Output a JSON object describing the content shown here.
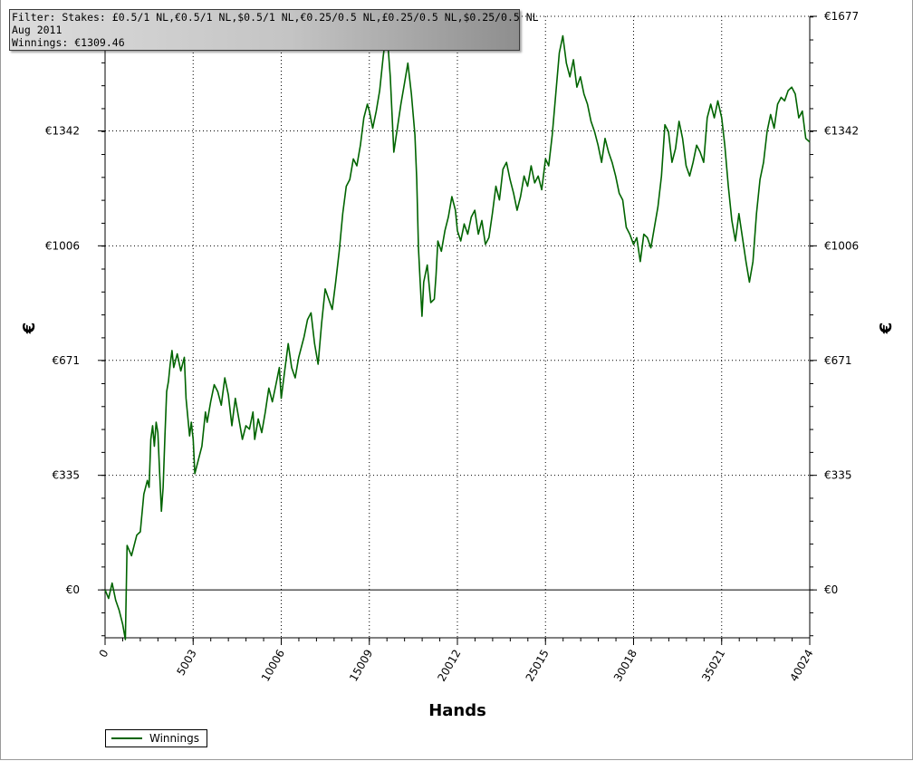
{
  "info": {
    "filter_line": "Filter: Stakes: £0.5/1 NL,€0.5/1 NL,$0.5/1 NL,€0.25/0.5 NL,£0.25/0.5 NL,$0.25/0.5 NL",
    "date_line": "Aug 2011",
    "winnings_line": "Winnings: €1309.46"
  },
  "legend": {
    "label": "Winnings"
  },
  "chart_data": {
    "type": "line",
    "xlabel": "Hands",
    "ylabel": "€",
    "ylabel_right": "€",
    "xlim": [
      0,
      40024
    ],
    "ylim": [
      -140,
      1677
    ],
    "x_ticks": [
      0,
      5003,
      10006,
      15009,
      20012,
      25015,
      30018,
      35021,
      40024
    ],
    "x_tick_labels": [
      "0",
      "5003",
      "10006",
      "15009",
      "20012",
      "25015",
      "30018",
      "35021",
      "40024"
    ],
    "y_ticks": [
      0,
      335,
      671,
      1006,
      1342,
      1677
    ],
    "y_tick_labels": [
      "€0",
      "€335",
      "€671",
      "€1006",
      "€1342",
      "€1677"
    ],
    "grid": true,
    "line_color": "#006400",
    "series": [
      {
        "name": "Winnings",
        "points": [
          [
            0,
            0
          ],
          [
            200,
            -25
          ],
          [
            400,
            20
          ],
          [
            600,
            -30
          ],
          [
            800,
            -60
          ],
          [
            1000,
            -100
          ],
          [
            1100,
            -130
          ],
          [
            1150,
            -145
          ],
          [
            1250,
            130
          ],
          [
            1500,
            100
          ],
          [
            1800,
            160
          ],
          [
            2000,
            170
          ],
          [
            2200,
            280
          ],
          [
            2400,
            320
          ],
          [
            2500,
            300
          ],
          [
            2600,
            440
          ],
          [
            2700,
            480
          ],
          [
            2800,
            420
          ],
          [
            2900,
            490
          ],
          [
            3000,
            460
          ],
          [
            3100,
            340
          ],
          [
            3200,
            230
          ],
          [
            3300,
            300
          ],
          [
            3400,
            450
          ],
          [
            3500,
            580
          ],
          [
            3600,
            610
          ],
          [
            3700,
            660
          ],
          [
            3800,
            700
          ],
          [
            3900,
            650
          ],
          [
            4100,
            690
          ],
          [
            4300,
            640
          ],
          [
            4500,
            680
          ],
          [
            4600,
            560
          ],
          [
            4800,
            450
          ],
          [
            4900,
            490
          ],
          [
            5003,
            440
          ],
          [
            5100,
            340
          ],
          [
            5300,
            380
          ],
          [
            5500,
            420
          ],
          [
            5700,
            520
          ],
          [
            5800,
            490
          ],
          [
            6000,
            550
          ],
          [
            6200,
            600
          ],
          [
            6400,
            580
          ],
          [
            6600,
            540
          ],
          [
            6800,
            620
          ],
          [
            7000,
            570
          ],
          [
            7200,
            480
          ],
          [
            7400,
            560
          ],
          [
            7600,
            500
          ],
          [
            7800,
            440
          ],
          [
            8000,
            480
          ],
          [
            8200,
            470
          ],
          [
            8400,
            520
          ],
          [
            8500,
            440
          ],
          [
            8700,
            500
          ],
          [
            8900,
            460
          ],
          [
            9100,
            520
          ],
          [
            9300,
            590
          ],
          [
            9500,
            550
          ],
          [
            9700,
            600
          ],
          [
            9900,
            650
          ],
          [
            10006,
            560
          ],
          [
            10200,
            640
          ],
          [
            10400,
            720
          ],
          [
            10600,
            650
          ],
          [
            10800,
            620
          ],
          [
            11000,
            680
          ],
          [
            11300,
            740
          ],
          [
            11500,
            790
          ],
          [
            11700,
            810
          ],
          [
            11900,
            720
          ],
          [
            12100,
            660
          ],
          [
            12300,
            780
          ],
          [
            12500,
            880
          ],
          [
            12700,
            850
          ],
          [
            12900,
            820
          ],
          [
            13100,
            900
          ],
          [
            13300,
            990
          ],
          [
            13500,
            1100
          ],
          [
            13700,
            1180
          ],
          [
            13900,
            1200
          ],
          [
            14100,
            1260
          ],
          [
            14300,
            1240
          ],
          [
            14500,
            1300
          ],
          [
            14700,
            1380
          ],
          [
            14900,
            1420
          ],
          [
            15009,
            1400
          ],
          [
            15200,
            1350
          ],
          [
            15400,
            1400
          ],
          [
            15600,
            1460
          ],
          [
            15800,
            1560
          ],
          [
            16000,
            1640
          ],
          [
            16200,
            1500
          ],
          [
            16400,
            1280
          ],
          [
            16600,
            1350
          ],
          [
            16800,
            1420
          ],
          [
            17000,
            1480
          ],
          [
            17200,
            1540
          ],
          [
            17400,
            1450
          ],
          [
            17600,
            1330
          ],
          [
            17700,
            1200
          ],
          [
            17800,
            1000
          ],
          [
            17900,
            900
          ],
          [
            18000,
            800
          ],
          [
            18100,
            900
          ],
          [
            18300,
            950
          ],
          [
            18500,
            840
          ],
          [
            18700,
            850
          ],
          [
            18800,
            920
          ],
          [
            18900,
            1020
          ],
          [
            19100,
            990
          ],
          [
            19300,
            1050
          ],
          [
            19500,
            1090
          ],
          [
            19700,
            1150
          ],
          [
            19900,
            1110
          ],
          [
            20012,
            1050
          ],
          [
            20200,
            1020
          ],
          [
            20400,
            1070
          ],
          [
            20600,
            1040
          ],
          [
            20800,
            1090
          ],
          [
            21000,
            1110
          ],
          [
            21200,
            1040
          ],
          [
            21400,
            1080
          ],
          [
            21600,
            1010
          ],
          [
            21800,
            1030
          ],
          [
            22000,
            1100
          ],
          [
            22200,
            1180
          ],
          [
            22400,
            1140
          ],
          [
            22600,
            1230
          ],
          [
            22800,
            1250
          ],
          [
            23000,
            1200
          ],
          [
            23200,
            1160
          ],
          [
            23400,
            1110
          ],
          [
            23600,
            1150
          ],
          [
            23800,
            1210
          ],
          [
            24000,
            1180
          ],
          [
            24200,
            1240
          ],
          [
            24400,
            1190
          ],
          [
            24600,
            1210
          ],
          [
            24800,
            1170
          ],
          [
            25015,
            1260
          ],
          [
            25200,
            1240
          ],
          [
            25400,
            1330
          ],
          [
            25600,
            1450
          ],
          [
            25800,
            1570
          ],
          [
            26000,
            1620
          ],
          [
            26200,
            1540
          ],
          [
            26400,
            1500
          ],
          [
            26600,
            1550
          ],
          [
            26800,
            1470
          ],
          [
            27000,
            1500
          ],
          [
            27200,
            1450
          ],
          [
            27400,
            1420
          ],
          [
            27600,
            1370
          ],
          [
            27800,
            1340
          ],
          [
            28000,
            1300
          ],
          [
            28200,
            1250
          ],
          [
            28400,
            1320
          ],
          [
            28600,
            1280
          ],
          [
            28800,
            1250
          ],
          [
            29000,
            1210
          ],
          [
            29200,
            1160
          ],
          [
            29400,
            1140
          ],
          [
            29600,
            1060
          ],
          [
            29800,
            1040
          ],
          [
            30018,
            1010
          ],
          [
            30200,
            1030
          ],
          [
            30400,
            960
          ],
          [
            30600,
            1040
          ],
          [
            30800,
            1030
          ],
          [
            31000,
            1000
          ],
          [
            31200,
            1060
          ],
          [
            31400,
            1120
          ],
          [
            31600,
            1210
          ],
          [
            31800,
            1360
          ],
          [
            32000,
            1340
          ],
          [
            32200,
            1250
          ],
          [
            32400,
            1290
          ],
          [
            32600,
            1370
          ],
          [
            32800,
            1320
          ],
          [
            33000,
            1240
          ],
          [
            33200,
            1210
          ],
          [
            33400,
            1250
          ],
          [
            33600,
            1300
          ],
          [
            33800,
            1280
          ],
          [
            34000,
            1250
          ],
          [
            34200,
            1380
          ],
          [
            34400,
            1420
          ],
          [
            34600,
            1380
          ],
          [
            34800,
            1430
          ],
          [
            35021,
            1380
          ],
          [
            35200,
            1300
          ],
          [
            35400,
            1180
          ],
          [
            35600,
            1080
          ],
          [
            35800,
            1020
          ],
          [
            36000,
            1100
          ],
          [
            36200,
            1030
          ],
          [
            36400,
            960
          ],
          [
            36600,
            900
          ],
          [
            36800,
            960
          ],
          [
            37000,
            1100
          ],
          [
            37200,
            1200
          ],
          [
            37400,
            1250
          ],
          [
            37600,
            1340
          ],
          [
            37800,
            1390
          ],
          [
            38000,
            1350
          ],
          [
            38200,
            1420
          ],
          [
            38400,
            1440
          ],
          [
            38600,
            1430
          ],
          [
            38800,
            1460
          ],
          [
            39000,
            1470
          ],
          [
            39200,
            1450
          ],
          [
            39400,
            1380
          ],
          [
            39600,
            1400
          ],
          [
            39800,
            1320
          ],
          [
            40024,
            1309.46
          ]
        ]
      }
    ]
  }
}
